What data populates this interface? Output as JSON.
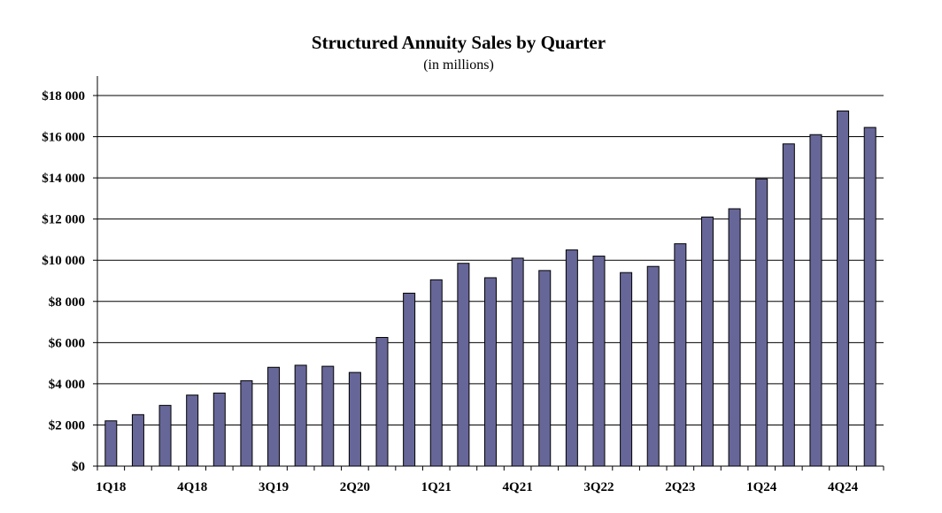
{
  "chart_data": {
    "type": "bar",
    "title": "Structured Annuity Sales by Quarter",
    "subtitle": "(in millions)",
    "xlabel": "",
    "ylabel": "",
    "ylim": [
      0,
      18000
    ],
    "yticks": [
      0,
      2000,
      4000,
      6000,
      8000,
      10000,
      12000,
      14000,
      16000,
      18000
    ],
    "ytick_labels": [
      "$0",
      "$2 000",
      "$4 000",
      "$6 000",
      "$8 000",
      "$10 000",
      "$12 000",
      "$14 000",
      "$16 000",
      "$18 000"
    ],
    "xtick_labels": [
      "1Q18",
      "4Q18",
      "3Q19",
      "2Q20",
      "1Q21",
      "4Q21",
      "3Q22",
      "2Q23",
      "1Q24",
      "4Q24"
    ],
    "categories": [
      "1Q18",
      "2Q18",
      "3Q18",
      "4Q18",
      "1Q19",
      "2Q19",
      "3Q19",
      "4Q19",
      "1Q20",
      "2Q20",
      "3Q20",
      "4Q20",
      "1Q21",
      "2Q21",
      "3Q21",
      "4Q21",
      "1Q22",
      "2Q22",
      "3Q22",
      "4Q22",
      "1Q23",
      "2Q23",
      "3Q23",
      "4Q23",
      "1Q24",
      "2Q24",
      "3Q24",
      "4Q24",
      "1Q25"
    ],
    "values": [
      2200,
      2500,
      2950,
      3450,
      3550,
      4150,
      4800,
      4900,
      4850,
      4550,
      6250,
      8400,
      9050,
      9850,
      9150,
      10100,
      9500,
      10500,
      10200,
      9400,
      9700,
      10800,
      12100,
      12500,
      13950,
      15650,
      16100,
      17250,
      16450
    ],
    "grid": true,
    "colors": {
      "bar_fill": "#676698",
      "bar_stroke": "#000000",
      "grid": "#000000",
      "axis": "#000000"
    }
  }
}
